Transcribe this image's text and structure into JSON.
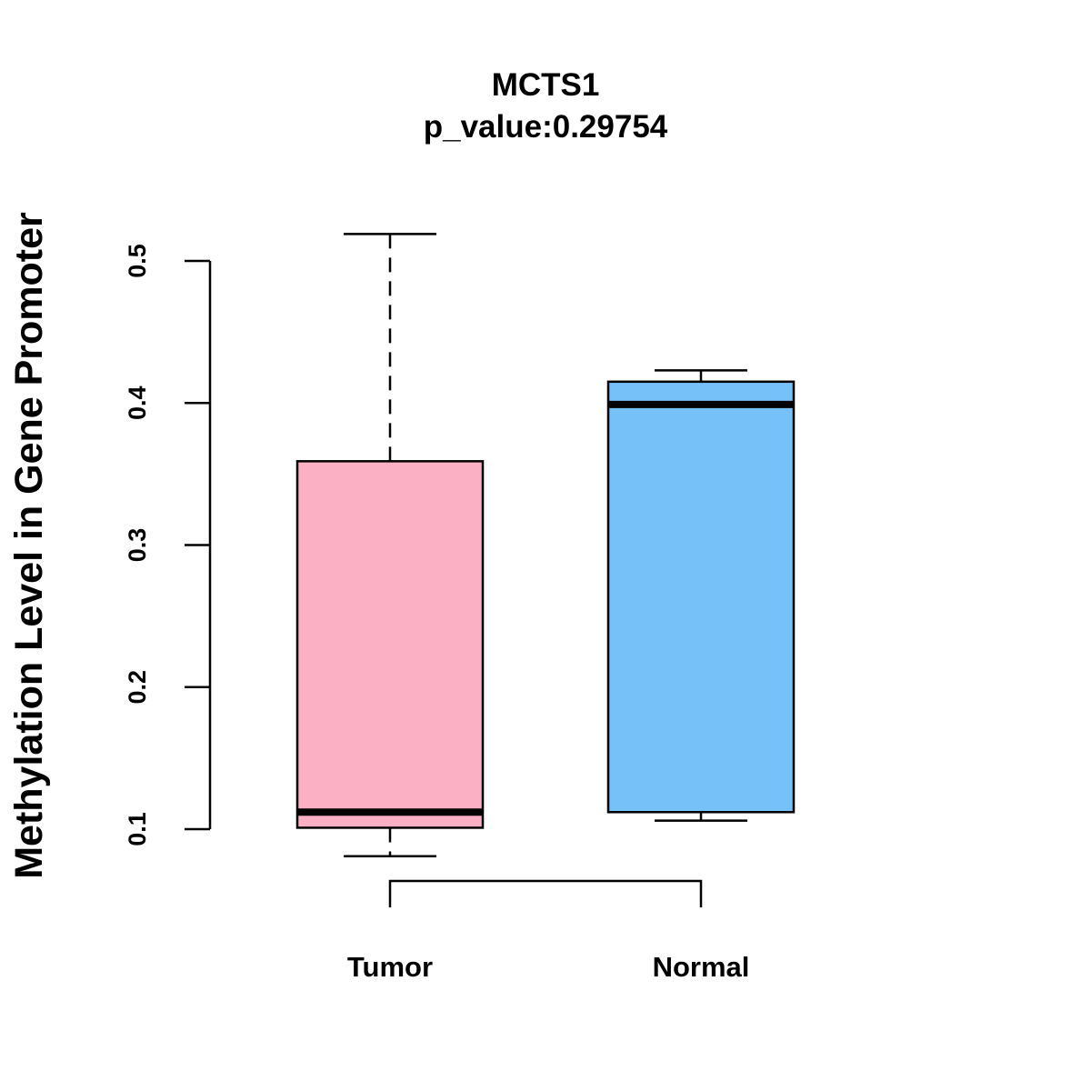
{
  "chart_data": {
    "type": "boxplot",
    "title": "MCTS1",
    "subtitle": "p_value:0.29754",
    "xlabel": "",
    "ylabel": "Methylation Level in Gene Promoter",
    "ylim": [
      0.1,
      0.5
    ],
    "yticks": [
      0.1,
      0.2,
      0.3,
      0.4,
      0.5
    ],
    "ytick_labels": [
      "0.1",
      "0.2",
      "0.3",
      "0.4",
      "0.5"
    ],
    "grid": false,
    "categories": [
      "Tumor",
      "Normal"
    ],
    "series": [
      {
        "name": "Tumor",
        "color": "#FBB1C3",
        "min": 0.081,
        "q1": 0.101,
        "median": 0.112,
        "q3": 0.359,
        "max": 0.519
      },
      {
        "name": "Normal",
        "color": "#76C1F8",
        "min": 0.106,
        "q1": 0.112,
        "median": 0.399,
        "q3": 0.415,
        "max": 0.423
      }
    ],
    "comparison_bracket": [
      "Tumor",
      "Normal"
    ]
  }
}
